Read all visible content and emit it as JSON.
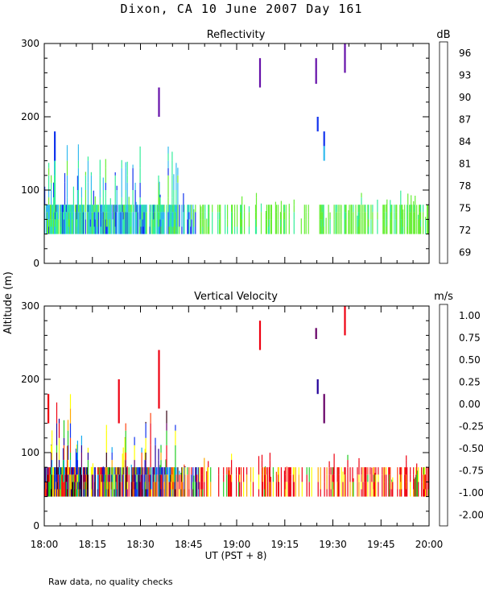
{
  "title": "Dixon, CA 10 June 2007  Day 161",
  "footnote": "Raw data, no quality checks",
  "colors": {
    "reflectivity": [
      "#ccff33",
      "#66ee33",
      "#33ee99",
      "#33bbee",
      "#1133ee",
      "#6611aa",
      "#330033",
      "#ee1111",
      "#ff8800",
      "#ffcc00"
    ],
    "velocity": [
      "#330011",
      "#660066",
      "#220099",
      "#1133ee",
      "#11aaee",
      "#22cc22",
      "#ffff00",
      "#ffaa00",
      "#ff4411",
      "#ee0011"
    ]
  },
  "chart_data": [
    {
      "type": "heatmap",
      "title": "Reflectivity",
      "ylabel": "Altitude (m)",
      "xlabel": "UT  (PST + 8)",
      "xlim_min": [
        0,
        120
      ],
      "ylim": [
        0,
        300
      ],
      "x_tick_labels": [
        "18:00",
        "18:15",
        "18:30",
        "18:45",
        "19:00",
        "19:15",
        "19:30",
        "19:45",
        "20:00"
      ],
      "y_ticks": [
        0,
        100,
        200,
        300
      ],
      "colorbar": {
        "unit": "dB",
        "labels": [
          69,
          72,
          75,
          78,
          81,
          84,
          87,
          90,
          93,
          96
        ]
      },
      "plumes": [
        {
          "t": 67,
          "alt": [
            240,
            280
          ],
          "level": 5
        },
        {
          "t": 84.5,
          "alt": [
            245,
            280
          ],
          "level": 5
        },
        {
          "t": 93.5,
          "alt": [
            260,
            300
          ],
          "level": 5
        },
        {
          "t": 85,
          "alt": [
            180,
            200
          ],
          "level": 4
        },
        {
          "t": 87,
          "alt": [
            160,
            180
          ],
          "level": 4
        },
        {
          "t": 87,
          "alt": [
            140,
            160
          ],
          "level": 3
        },
        {
          "t": 35.5,
          "alt": [
            200,
            240
          ],
          "level": 5
        },
        {
          "t": 3,
          "alt": [
            140,
            180
          ],
          "level": 4
        }
      ]
    },
    {
      "type": "heatmap",
      "title": "Vertical Velocity",
      "ylabel": "Altitude (m)",
      "xlabel": "UT  (PST + 8)",
      "xlim_min": [
        0,
        120
      ],
      "ylim": [
        0,
        300
      ],
      "x_tick_labels": [
        "18:00",
        "18:15",
        "18:30",
        "18:45",
        "19:00",
        "19:15",
        "19:30",
        "19:45",
        "20:00"
      ],
      "y_ticks": [
        0,
        100,
        200,
        300
      ],
      "colorbar": {
        "unit": "m/s",
        "labels": [
          "-2.00",
          "-1.00",
          "-0.75",
          "-0.50",
          "-0.25",
          "0.00",
          "0.25",
          "0.50",
          "0.75",
          "1.00"
        ]
      },
      "plumes": [
        {
          "t": 67,
          "alt": [
            240,
            280
          ],
          "level": 9
        },
        {
          "t": 84.5,
          "alt": [
            255,
            270
          ],
          "level": 1
        },
        {
          "t": 93.5,
          "alt": [
            260,
            300
          ],
          "level": 9
        },
        {
          "t": 85,
          "alt": [
            180,
            200
          ],
          "level": 2
        },
        {
          "t": 87,
          "alt": [
            140,
            180
          ],
          "level": 1
        },
        {
          "t": 35.5,
          "alt": [
            160,
            240
          ],
          "level": 9
        },
        {
          "t": 23,
          "alt": [
            140,
            200
          ],
          "level": 9
        },
        {
          "t": 1,
          "alt": [
            140,
            180
          ],
          "level": 9
        }
      ]
    }
  ]
}
